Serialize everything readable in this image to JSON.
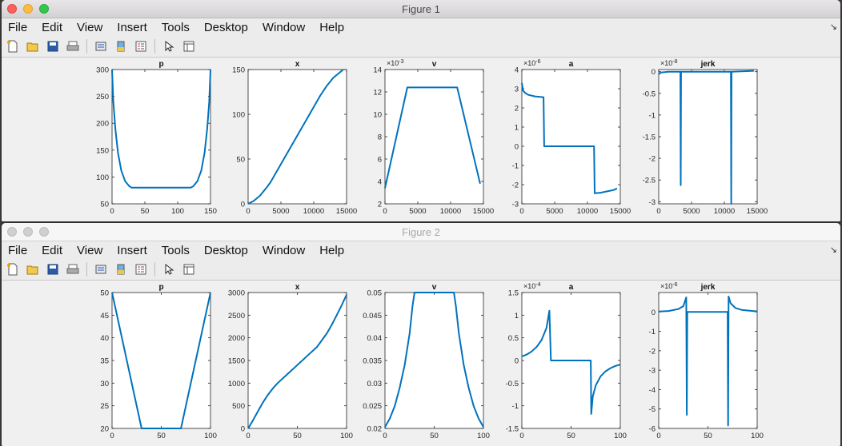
{
  "windows": [
    {
      "title": "Figure 1",
      "active": true,
      "menus": [
        "File",
        "Edit",
        "View",
        "Insert",
        "Tools",
        "Desktop",
        "Window",
        "Help"
      ],
      "axes": [
        {
          "title": "p",
          "exp": "",
          "xt": [
            "0",
            "50",
            "100",
            "150"
          ],
          "xv": [
            0,
            50,
            100,
            150
          ],
          "xlim": [
            0,
            150
          ],
          "yt": [
            "300",
            "250",
            "200",
            "150",
            "100",
            "50"
          ],
          "yv": [
            300,
            250,
            200,
            150,
            100,
            50
          ],
          "ylim": [
            50,
            300
          ],
          "xy": [
            [
              0,
              300
            ],
            [
              2,
              240
            ],
            [
              5,
              190
            ],
            [
              9,
              145
            ],
            [
              14,
              112
            ],
            [
              20,
              92
            ],
            [
              26,
              83
            ],
            [
              30,
              80
            ],
            [
              120,
              80
            ],
            [
              124,
              83
            ],
            [
              130,
              92
            ],
            [
              136,
              112
            ],
            [
              141,
              145
            ],
            [
              145,
              190
            ],
            [
              148,
              240
            ],
            [
              150,
              300
            ]
          ]
        },
        {
          "title": "x",
          "exp": "",
          "xt": [
            "0",
            "5000",
            "10000",
            "15000"
          ],
          "xv": [
            0,
            5000,
            10000,
            15000
          ],
          "xlim": [
            0,
            15000
          ],
          "yt": [
            "150",
            "100",
            "50",
            "0"
          ],
          "yv": [
            150,
            100,
            50,
            0
          ],
          "ylim": [
            0,
            150
          ],
          "xy": [
            [
              0,
              0
            ],
            [
              800,
              3
            ],
            [
              1800,
              9
            ],
            [
              2800,
              18
            ],
            [
              3400,
              24
            ],
            [
              11000,
              121
            ],
            [
              12000,
              132
            ],
            [
              13000,
              141
            ],
            [
              14000,
              147
            ],
            [
              14500,
              150
            ]
          ]
        },
        {
          "title": "v",
          "exp": "×10",
          "expp": "-3",
          "xt": [
            "0",
            "5000",
            "10000",
            "15000"
          ],
          "xv": [
            0,
            5000,
            10000,
            15000
          ],
          "xlim": [
            0,
            15000
          ],
          "yt": [
            "14",
            "12",
            "10",
            "8",
            "6",
            "4",
            "2"
          ],
          "yv": [
            14,
            12,
            10,
            8,
            6,
            4,
            2
          ],
          "ylim": [
            2,
            14
          ],
          "xy": [
            [
              0,
              3.4
            ],
            [
              3400,
              12.4
            ],
            [
              11000,
              12.4
            ],
            [
              14500,
              3.8
            ]
          ]
        },
        {
          "title": "a",
          "exp": "×10",
          "expp": "-6",
          "xt": [
            "0",
            "5000",
            "10000",
            "15000"
          ],
          "xv": [
            0,
            5000,
            10000,
            15000
          ],
          "xlim": [
            0,
            15000
          ],
          "yt": [
            "4",
            "3",
            "2",
            "1",
            "0",
            "-1",
            "-2",
            "-3"
          ],
          "yv": [
            4,
            3,
            2,
            1,
            0,
            -1,
            -2,
            -3
          ],
          "ylim": [
            -3,
            4
          ],
          "xy": [
            [
              0,
              3.3
            ],
            [
              200,
              2.9
            ],
            [
              500,
              2.78
            ],
            [
              1000,
              2.68
            ],
            [
              2000,
              2.6
            ],
            [
              3300,
              2.56
            ],
            [
              3400,
              0
            ],
            [
              11000,
              0
            ],
            [
              11100,
              -2.45
            ],
            [
              12000,
              -2.42
            ],
            [
              13000,
              -2.35
            ],
            [
              14000,
              -2.28
            ],
            [
              14500,
              -2.2
            ]
          ]
        },
        {
          "title": "jerk",
          "exp": "×10",
          "expp": "-8",
          "xt": [
            "0",
            "5000",
            "10000",
            "15000"
          ],
          "xv": [
            0,
            5000,
            10000,
            15000
          ],
          "xlim": [
            0,
            15000
          ],
          "yt": [
            "0",
            "-0.5",
            "-1",
            "-1.5",
            "-2",
            "-2.5",
            "-3"
          ],
          "yv": [
            0,
            -0.5,
            -1,
            -1.5,
            -2,
            -2.5,
            -3
          ],
          "ylim": [
            -3.05,
            0.05
          ],
          "xy": [
            [
              0,
              -0.06
            ],
            [
              300,
              -0.02
            ],
            [
              1500,
              0
            ],
            [
              3300,
              0
            ],
            [
              3350,
              -2.62
            ],
            [
              3400,
              0
            ],
            [
              11000,
              0
            ],
            [
              11050,
              -3.05
            ],
            [
              11100,
              0
            ],
            [
              14500,
              0.02
            ]
          ]
        }
      ]
    },
    {
      "title": "Figure 2",
      "active": false,
      "menus": [
        "File",
        "Edit",
        "View",
        "Insert",
        "Tools",
        "Desktop",
        "Window",
        "Help"
      ],
      "axes": [
        {
          "title": "p",
          "exp": "",
          "xt": [
            "0",
            "50",
            "100"
          ],
          "xv": [
            0,
            50,
            100
          ],
          "xlim": [
            0,
            100
          ],
          "yt": [
            "50",
            "45",
            "40",
            "35",
            "30",
            "25",
            "20"
          ],
          "yv": [
            50,
            45,
            40,
            35,
            30,
            25,
            20
          ],
          "ylim": [
            20,
            50
          ],
          "xy": [
            [
              0,
              50
            ],
            [
              30,
              20
            ],
            [
              70,
              20
            ],
            [
              100,
              50
            ]
          ]
        },
        {
          "title": "x",
          "exp": "",
          "xt": [
            "0",
            "50",
            "100"
          ],
          "xv": [
            0,
            50,
            100
          ],
          "xlim": [
            0,
            100
          ],
          "yt": [
            "3000",
            "2500",
            "2000",
            "1500",
            "1000",
            "500",
            "0"
          ],
          "yv": [
            3000,
            2500,
            2000,
            1500,
            1000,
            500,
            0
          ],
          "ylim": [
            0,
            3000
          ],
          "xy": [
            [
              0,
              0
            ],
            [
              5,
              180
            ],
            [
              10,
              380
            ],
            [
              15,
              570
            ],
            [
              20,
              740
            ],
            [
              25,
              880
            ],
            [
              30,
              1000
            ],
            [
              40,
              1200
            ],
            [
              50,
              1400
            ],
            [
              60,
              1600
            ],
            [
              70,
              1800
            ],
            [
              75,
              1950
            ],
            [
              80,
              2100
            ],
            [
              85,
              2290
            ],
            [
              90,
              2500
            ],
            [
              95,
              2720
            ],
            [
              100,
              2950
            ]
          ]
        },
        {
          "title": "v",
          "exp": "",
          "xt": [
            "0",
            "50",
            "100"
          ],
          "xv": [
            0,
            50,
            100
          ],
          "xlim": [
            0,
            100
          ],
          "yt": [
            "0.05",
            "0.045",
            "0.04",
            "0.035",
            "0.03",
            "0.025",
            "0.02"
          ],
          "yv": [
            0.05,
            0.045,
            0.04,
            0.035,
            0.03,
            0.025,
            0.02
          ],
          "ylim": [
            0.02,
            0.05
          ],
          "xy": [
            [
              0,
              0.0203
            ],
            [
              5,
              0.0222
            ],
            [
              10,
              0.025
            ],
            [
              15,
              0.029
            ],
            [
              20,
              0.034
            ],
            [
              25,
              0.041
            ],
            [
              28,
              0.047
            ],
            [
              30,
              0.05
            ],
            [
              70,
              0.05
            ],
            [
              72,
              0.047
            ],
            [
              75,
              0.041
            ],
            [
              80,
              0.034
            ],
            [
              85,
              0.029
            ],
            [
              90,
              0.025
            ],
            [
              95,
              0.0222
            ],
            [
              100,
              0.0203
            ]
          ]
        },
        {
          "title": "a",
          "exp": "×10",
          "expp": "-4",
          "xt": [
            "0",
            "50",
            "100"
          ],
          "xv": [
            0,
            50,
            100
          ],
          "xlim": [
            0,
            100
          ],
          "yt": [
            "1.5",
            "1",
            "0.5",
            "0",
            "-0.5",
            "-1",
            "-1.5"
          ],
          "yv": [
            1.5,
            1,
            0.5,
            0,
            -0.5,
            -1,
            -1.5
          ],
          "ylim": [
            -1.5,
            1.5
          ],
          "xy": [
            [
              0,
              0.09
            ],
            [
              5,
              0.13
            ],
            [
              10,
              0.2
            ],
            [
              15,
              0.3
            ],
            [
              20,
              0.45
            ],
            [
              25,
              0.72
            ],
            [
              28,
              1.1
            ],
            [
              29.5,
              0
            ],
            [
              70,
              0
            ],
            [
              70.5,
              -1.18
            ],
            [
              72,
              -0.8
            ],
            [
              75,
              -0.55
            ],
            [
              80,
              -0.35
            ],
            [
              85,
              -0.24
            ],
            [
              90,
              -0.17
            ],
            [
              95,
              -0.12
            ],
            [
              100,
              -0.09
            ]
          ]
        },
        {
          "title": "jerk",
          "exp": "×10",
          "expp": "-6",
          "xt": [
            "0",
            "50",
            "100"
          ],
          "xv": [
            0,
            50,
            100
          ],
          "xlim": [
            0,
            100
          ],
          "yt": [
            "0",
            "-1",
            "-2",
            "-3",
            "-4",
            "-5",
            "-6"
          ],
          "yv": [
            0,
            -1,
            -2,
            -3,
            -4,
            -5,
            -6
          ],
          "ylim": [
            -6,
            1
          ],
          "xy": [
            [
              0,
              0.02
            ],
            [
              10,
              0.05
            ],
            [
              20,
              0.15
            ],
            [
              25,
              0.3
            ],
            [
              28,
              0.75
            ],
            [
              28.5,
              -5.3
            ],
            [
              29,
              0
            ],
            [
              30,
              0
            ],
            [
              70,
              0
            ],
            [
              70.5,
              -5.85
            ],
            [
              71,
              0.8
            ],
            [
              73,
              0.45
            ],
            [
              78,
              0.2
            ],
            [
              85,
              0.1
            ],
            [
              100,
              0.03
            ]
          ]
        }
      ]
    }
  ]
}
